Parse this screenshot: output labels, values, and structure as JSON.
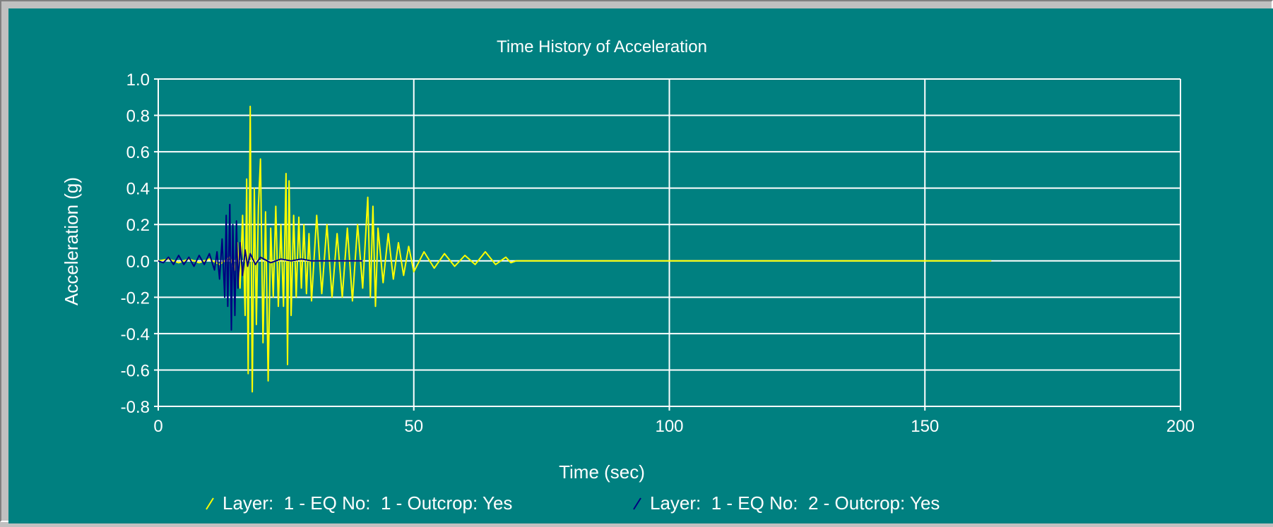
{
  "chart_data": {
    "type": "line",
    "title": "Time History of Acceleration",
    "xlabel": "Time (sec)",
    "ylabel": "Acceleration (g)",
    "xlim": [
      0,
      200
    ],
    "ylim": [
      -0.8,
      1.0
    ],
    "x_ticks": [
      0,
      50,
      100,
      150,
      200
    ],
    "y_ticks": [
      1.0,
      0.8,
      0.6,
      0.4,
      0.2,
      0.0,
      -0.2,
      -0.4,
      -0.6,
      -0.8
    ],
    "x_tick_labels": [
      "0",
      "50",
      "100",
      "150",
      "200"
    ],
    "y_tick_labels": [
      "1.0",
      "0.8",
      "0.6",
      "0.4",
      "0.2",
      "0.0",
      "-0.2",
      "-0.4",
      "-0.6",
      "-0.8"
    ],
    "grid": true,
    "legend_position": "bottom",
    "series": [
      {
        "name": "Layer:  1 - EQ No:  1 - Outcrop: Yes",
        "color": "#ffff00",
        "x": [
          0,
          2,
          4,
          6,
          8,
          10,
          12,
          14,
          15,
          15.5,
          16,
          16.5,
          17,
          17.3,
          17.6,
          18,
          18.4,
          18.8,
          19.2,
          19.6,
          20,
          20.5,
          21,
          21.5,
          22,
          22.5,
          23,
          23.5,
          24,
          24.5,
          25,
          25.3,
          25.6,
          26,
          26.5,
          27,
          27.5,
          28,
          28.5,
          29,
          29.5,
          30,
          31,
          32,
          33,
          34,
          35,
          36,
          37,
          38,
          39,
          40,
          41,
          41.5,
          42,
          42.5,
          43,
          44,
          45,
          46,
          47,
          48,
          49,
          50,
          52,
          54,
          56,
          58,
          60,
          62,
          64,
          66,
          68,
          69,
          70,
          80,
          100,
          120,
          140,
          160,
          163
        ],
        "values": [
          0.0,
          0.01,
          -0.01,
          0.01,
          -0.01,
          0.01,
          -0.02,
          0.02,
          -0.05,
          0.1,
          -0.15,
          0.25,
          -0.3,
          0.45,
          -0.62,
          0.85,
          -0.72,
          0.4,
          -0.35,
          0.3,
          0.56,
          -0.45,
          0.27,
          -0.66,
          0.18,
          -0.2,
          0.3,
          -0.25,
          0.2,
          -0.25,
          0.48,
          -0.57,
          0.44,
          -0.3,
          0.25,
          -0.2,
          0.24,
          -0.15,
          0.2,
          -0.18,
          0.15,
          -0.22,
          0.25,
          -0.18,
          0.2,
          -0.2,
          0.15,
          -0.2,
          0.18,
          -0.22,
          0.2,
          -0.15,
          0.35,
          -0.2,
          0.3,
          -0.25,
          0.18,
          -0.12,
          0.15,
          -0.1,
          0.1,
          -0.08,
          0.08,
          -0.06,
          0.05,
          -0.04,
          0.04,
          -0.03,
          0.03,
          -0.02,
          0.05,
          -0.02,
          0.02,
          -0.01,
          0.0,
          0.0,
          0.0,
          0.0,
          0.0,
          0.0,
          0.0
        ]
      },
      {
        "name": "Layer:  1 - EQ No:  2 - Outcrop: Yes",
        "color": "#000080",
        "x": [
          0,
          1,
          2,
          3,
          4,
          5,
          6,
          7,
          8,
          9,
          10,
          11,
          11.5,
          12,
          12.5,
          13,
          13.3,
          13.6,
          14,
          14.3,
          14.6,
          15,
          15.3,
          15.6,
          16,
          16.5,
          17,
          17.5,
          18,
          19,
          20,
          22,
          24,
          26,
          28,
          30,
          35,
          40
        ],
        "values": [
          0.0,
          -0.01,
          0.02,
          -0.02,
          0.03,
          -0.02,
          0.02,
          -0.03,
          0.03,
          -0.02,
          0.04,
          -0.05,
          0.05,
          -0.1,
          0.12,
          -0.2,
          0.25,
          -0.25,
          0.31,
          -0.38,
          0.2,
          -0.3,
          0.22,
          -0.15,
          0.1,
          -0.08,
          0.06,
          -0.03,
          0.04,
          -0.02,
          0.02,
          -0.01,
          0.01,
          0.0,
          0.01,
          0.0,
          0.0,
          0.0
        ]
      }
    ]
  }
}
